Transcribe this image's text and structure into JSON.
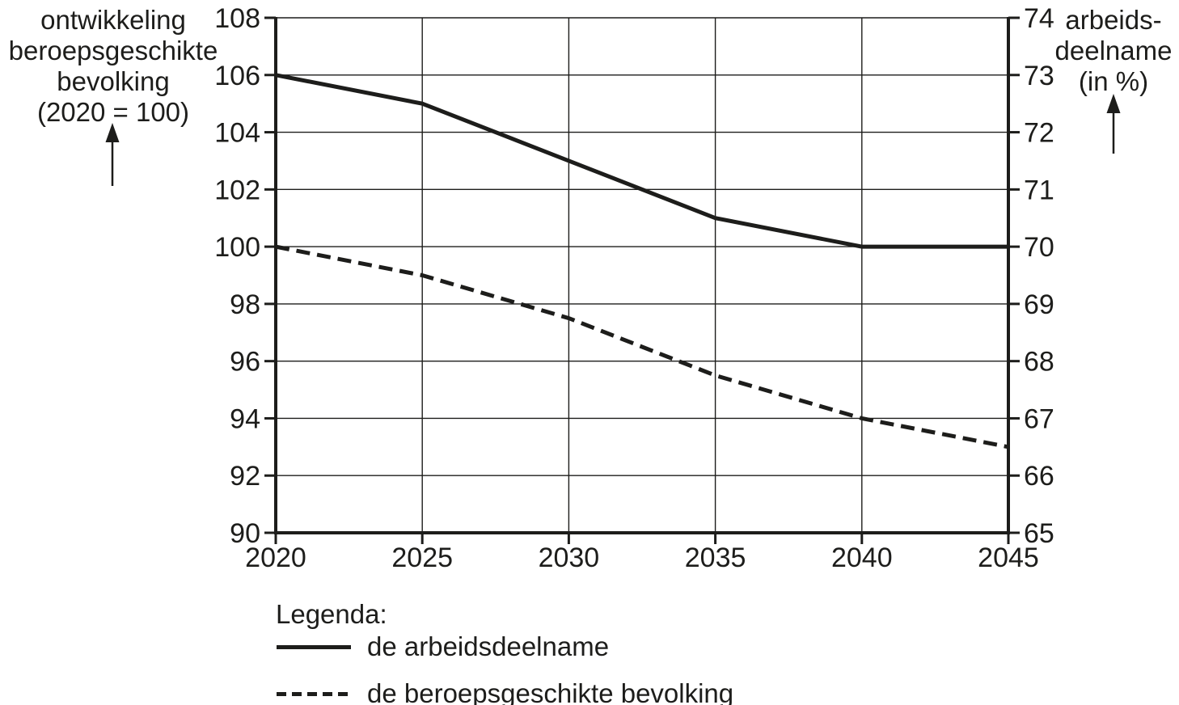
{
  "figure": {
    "background": "#ffffff",
    "ink_color": "#1d1d1b"
  },
  "chart_data": {
    "type": "line",
    "x": [
      2020,
      2025,
      2030,
      2035,
      2040,
      2045
    ],
    "x_axis": {
      "min": 2020,
      "max": 2045,
      "ticks": [
        2020,
        2025,
        2030,
        2035,
        2040,
        2045
      ]
    },
    "left_axis": {
      "title_lines": [
        "ontwikkeling",
        "beroepsgeschikte",
        "bevolking",
        "(2020 = 100)"
      ],
      "min": 90,
      "max": 108,
      "tick_step": 2,
      "ticks": [
        108,
        106,
        104,
        102,
        100,
        98,
        96,
        94,
        92,
        90
      ]
    },
    "right_axis": {
      "title_lines": [
        "arbeids-",
        "deelname",
        "(in %)"
      ],
      "min": 65,
      "max": 74,
      "tick_step": 1,
      "ticks": [
        74,
        73,
        72,
        71,
        70,
        69,
        68,
        67,
        66,
        65
      ]
    },
    "series": [
      {
        "name": "de arbeidsdeelname",
        "line_style": "solid",
        "axis": "right",
        "values": [
          73,
          72.5,
          71.5,
          70.5,
          70,
          70
        ]
      },
      {
        "name": "de beroepsgeschikte bevolking",
        "line_style": "dashed",
        "axis": "left",
        "values": [
          100,
          99,
          97.5,
          95.5,
          94,
          93
        ]
      }
    ],
    "grid": true,
    "legend": {
      "title": "Legenda:",
      "position": "bottom-left",
      "entries": [
        {
          "label": "de arbeidsdeelname",
          "line_style": "solid"
        },
        {
          "label": "de beroepsgeschikte bevolking",
          "line_style": "dashed"
        }
      ]
    }
  }
}
